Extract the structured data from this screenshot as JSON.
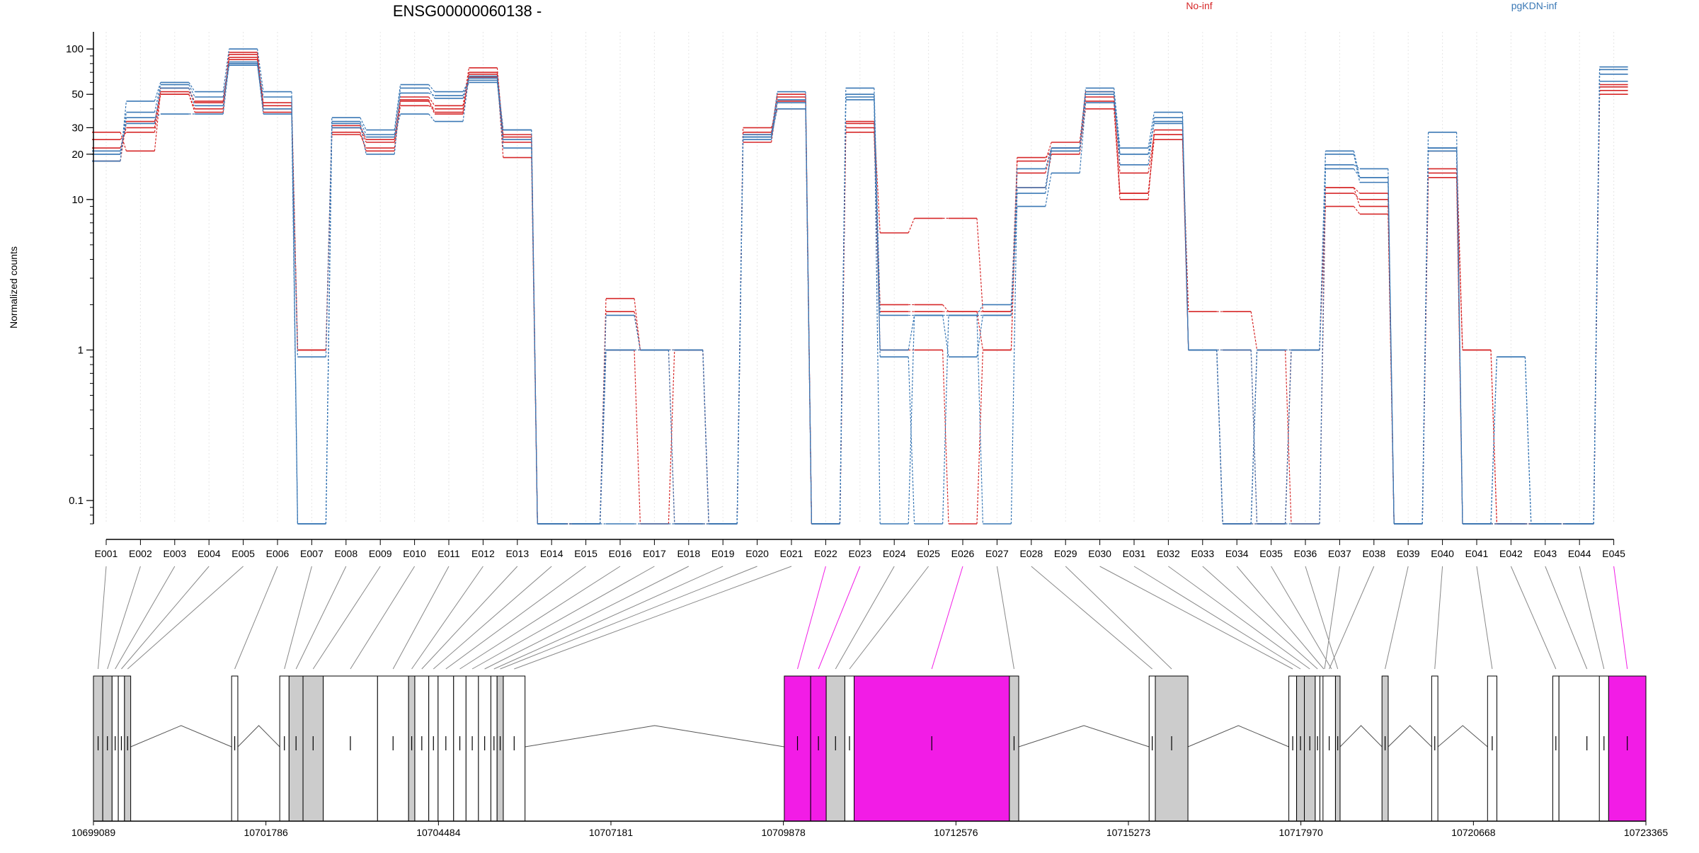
{
  "chart_data": {
    "type": "line",
    "title": "ENSG00000060138 -",
    "xlabel": "",
    "ylabel": "Normalized counts",
    "y_scale": "log",
    "ylim": [
      0.07,
      130
    ],
    "y_ticks": [
      {
        "value": 0.1,
        "label": "0.1"
      },
      {
        "value": 1,
        "label": "1"
      },
      {
        "value": 10,
        "label": "10"
      },
      {
        "value": 20,
        "label": "20"
      },
      {
        "value": 30,
        "label": "30"
      },
      {
        "value": 50,
        "label": "50"
      },
      {
        "value": 100,
        "label": "100"
      }
    ],
    "legend_placement": "top-right",
    "grid": true,
    "categories": [
      "E001",
      "E002",
      "E003",
      "E004",
      "E005",
      "E006",
      "E007",
      "E008",
      "E009",
      "E010",
      "E011",
      "E012",
      "E013",
      "E014",
      "E015",
      "E016",
      "E017",
      "E018",
      "E019",
      "E020",
      "E021",
      "E022",
      "E023",
      "E024",
      "E025",
      "E026",
      "E027",
      "E028",
      "E029",
      "E030",
      "E031",
      "E032",
      "E033",
      "E034",
      "E035",
      "E036",
      "E037",
      "E038",
      "E039",
      "E040",
      "E041",
      "E042",
      "E043",
      "E044",
      "E045"
    ],
    "groups": [
      {
        "name": "No-inf",
        "color": "#d62728"
      },
      {
        "name": "pgKDN-inf",
        "color": "#3a78b5"
      }
    ],
    "series": [
      {
        "group": 0,
        "values": [
          28,
          21,
          52,
          45,
          88,
          42,
          1,
          30,
          24,
          46,
          38,
          70,
          27,
          0.07,
          0.07,
          2.2,
          1,
          1,
          0.07,
          27,
          48,
          0.07,
          33,
          6,
          7.5,
          7.5,
          1.8,
          18,
          24,
          52,
          15,
          27,
          1.8,
          1.8,
          1,
          1,
          9,
          8,
          0.07,
          21,
          1,
          0.07,
          0.07,
          0.07,
          53
        ]
      },
      {
        "group": 0,
        "values": [
          25,
          28,
          50,
          40,
          92,
          38,
          1,
          27,
          22,
          42,
          40,
          65,
          24,
          0.07,
          0.07,
          1.8,
          1,
          1,
          0.07,
          28,
          50,
          0.07,
          30,
          2,
          2,
          1.8,
          1.8,
          12,
          20,
          48,
          11,
          25,
          1,
          0.07,
          1,
          0.07,
          11,
          10,
          0.07,
          15,
          1,
          0.07,
          0.07,
          0.07,
          56
        ]
      },
      {
        "group": 0,
        "values": [
          22,
          30,
          55,
          44,
          85,
          44,
          1,
          31,
          25,
          48,
          42,
          75,
          26,
          0.07,
          0.07,
          1,
          1,
          0.07,
          0.07,
          24,
          45,
          0.07,
          32,
          1.8,
          1.8,
          1.8,
          1,
          19,
          21,
          45,
          10,
          29,
          1,
          0.07,
          0.07,
          1,
          12,
          11,
          0.07,
          16,
          0.07,
          0.07,
          0.07,
          0.07,
          58
        ]
      },
      {
        "group": 0,
        "values": [
          18,
          33,
          50,
          38,
          95,
          40,
          1,
          28,
          21,
          45,
          37,
          68,
          19,
          0.07,
          0.07,
          1,
          0.07,
          1,
          0.07,
          30,
          40,
          0.07,
          28,
          1,
          1,
          0.07,
          1,
          15,
          22,
          40,
          11,
          27,
          1,
          1,
          0.07,
          1,
          12,
          9,
          0.07,
          14,
          0.07,
          0.07,
          0.07,
          0.07,
          50
        ]
      },
      {
        "group": 1,
        "values": [
          18,
          45,
          60,
          52,
          100,
          52,
          0.07,
          35,
          29,
          58,
          52,
          62,
          29,
          0.07,
          0.07,
          1,
          1,
          1,
          0.07,
          26,
          52,
          0.07,
          55,
          1.7,
          1.7,
          1.7,
          2,
          11,
          22,
          55,
          22,
          38,
          1,
          1,
          0.07,
          1,
          21,
          14,
          0.07,
          28,
          0.07,
          0.07,
          0.07,
          0.07,
          76
        ]
      },
      {
        "group": 1,
        "values": [
          20,
          38,
          58,
          48,
          82,
          48,
          0.07,
          33,
          27,
          55,
          47,
          60,
          25,
          0.07,
          0.07,
          1.7,
          1,
          0.07,
          0.07,
          25,
          44,
          0.07,
          48,
          0.07,
          1.7,
          1.7,
          1.7,
          16,
          22,
          52,
          17,
          35,
          1,
          0.07,
          1,
          1,
          17,
          16,
          0.07,
          22,
          0.07,
          0.9,
          0.07,
          0.07,
          73
        ]
      },
      {
        "group": 1,
        "values": [
          21,
          32,
          55,
          42,
          78,
          40,
          0.9,
          32,
          20,
          51,
          49,
          64,
          22,
          0.07,
          0.07,
          1,
          1,
          1,
          0.07,
          26,
          40,
          0.07,
          50,
          1,
          1.7,
          0.9,
          1.7,
          9,
          15,
          44,
          20,
          32,
          1,
          0.07,
          1,
          1,
          20,
          13,
          0.07,
          22,
          0.07,
          0.9,
          0.07,
          0.07,
          68
        ]
      },
      {
        "group": 1,
        "values": [
          20,
          35,
          37,
          37,
          80,
          37,
          0.07,
          30,
          26,
          37,
          33,
          66,
          29,
          0.07,
          0.07,
          0.07,
          0.07,
          0.07,
          0.07,
          27,
          46,
          0.07,
          46,
          0.9,
          0.07,
          1.7,
          0.07,
          12,
          21,
          50,
          20,
          33,
          1,
          0.07,
          0.07,
          0.07,
          16,
          14,
          0.07,
          21,
          0.07,
          0.07,
          0.07,
          0.07,
          61
        ]
      }
    ],
    "genomic_axis": {
      "ticks": [
        "10699089",
        "10701786",
        "10704484",
        "10707181",
        "10709878",
        "10712576",
        "10715273",
        "10717970",
        "10720668",
        "10723365"
      ]
    },
    "exon_fill": [
      "grey",
      "grey",
      "white",
      "white",
      "grey",
      "white",
      "white",
      "grey",
      "grey",
      "white",
      "white",
      "grey",
      "white",
      "white",
      "white",
      "white",
      "white",
      "white",
      "white",
      "grey",
      "white",
      "magenta",
      "magenta",
      "grey",
      "white",
      "magenta",
      "grey",
      "white",
      "grey",
      "white",
      "grey",
      "grey",
      "white",
      "white",
      "white",
      "grey",
      "white",
      "white",
      "grey",
      "white",
      "white",
      "white",
      "white",
      "white",
      "magenta"
    ],
    "highlight_color": "#f21ce6"
  }
}
